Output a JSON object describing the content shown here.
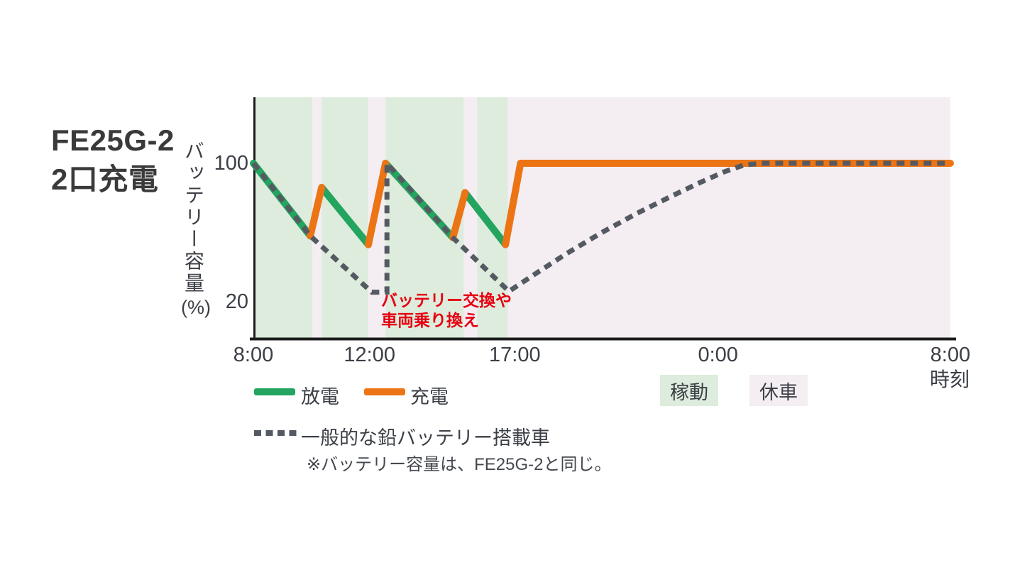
{
  "title": {
    "line1": "FE25G-2",
    "line2": "2口充電"
  },
  "colors": {
    "discharge": "#23a45f",
    "charge": "#ec7414",
    "lead": "#555a62",
    "band_active": "#ddecdc",
    "band_rest": "#f4eef3",
    "axis": "#1c1c1c",
    "text": "#3c4046",
    "annotation": "#e60012",
    "background": "#ffffff"
  },
  "chart_data": {
    "type": "line",
    "title": "FE25G-2 2口充電",
    "xlabel": "時刻",
    "ylabel": "バッテリー容量",
    "ylabel_unit": "(%)",
    "x_unit": "hours elapsed from 8:00",
    "x_range": [
      0,
      24
    ],
    "y_range": [
      0,
      115
    ],
    "grid": false,
    "x_ticks": [
      {
        "t": 0,
        "label": "8:00"
      },
      {
        "t": 4,
        "label": "12:00"
      },
      {
        "t": 9,
        "label": "17:00"
      },
      {
        "t": 16,
        "label": "0:00"
      },
      {
        "t": 24,
        "label": "8:00"
      }
    ],
    "y_ticks": [
      {
        "value": 100,
        "label": "100"
      },
      {
        "value": 20,
        "label": "20"
      }
    ],
    "bands": {
      "active": {
        "label": "稼動",
        "ranges": [
          [
            0,
            2.03
          ],
          [
            2.35,
            3.95
          ],
          [
            4.55,
            7.24
          ],
          [
            7.7,
            8.76
          ]
        ]
      },
      "rest": {
        "label": "休車",
        "ranges": [
          [
            2.03,
            2.35
          ],
          [
            3.95,
            4.55
          ],
          [
            7.24,
            7.7
          ],
          [
            8.76,
            24
          ]
        ]
      }
    },
    "series": [
      {
        "key": "discharge",
        "name": "放電",
        "style": "solid",
        "width": 10,
        "segments": [
          [
            [
              0,
              100
            ],
            [
              1.96,
              58
            ]
          ],
          [
            [
              2.35,
              86
            ],
            [
              3.96,
              53
            ]
          ],
          [
            [
              4.55,
              100
            ],
            [
              6.87,
              57
            ]
          ],
          [
            [
              7.29,
              83
            ],
            [
              8.68,
              53
            ]
          ]
        ]
      },
      {
        "key": "charge",
        "name": "充電",
        "style": "solid",
        "width": 10,
        "segments": [
          [
            [
              1.96,
              58
            ],
            [
              2.35,
              86
            ]
          ],
          [
            [
              3.96,
              53
            ],
            [
              4.55,
              100
            ]
          ],
          [
            [
              6.87,
              57
            ],
            [
              7.29,
              83
            ]
          ],
          [
            [
              8.68,
              53
            ],
            [
              9.2,
              100
            ],
            [
              24,
              100
            ]
          ]
        ]
      },
      {
        "key": "lead",
        "name": "一般的な鉛バッテリー搭載車",
        "style": "dashed",
        "width": 7,
        "points": [
          [
            0,
            100
          ],
          [
            1.96,
            58
          ],
          [
            4.08,
            25.5
          ],
          [
            4.6,
            25.5
          ],
          [
            4.6,
            100
          ],
          [
            6.87,
            57
          ],
          [
            8.8,
            26
          ],
          [
            9.7,
            36
          ],
          [
            10.8,
            48
          ],
          [
            12,
            60
          ],
          [
            13.2,
            71
          ],
          [
            14.4,
            81
          ],
          [
            15.4,
            89
          ],
          [
            16.2,
            95
          ],
          [
            16.9,
            99
          ],
          [
            17.5,
            100
          ],
          [
            24,
            100
          ]
        ]
      }
    ],
    "annotation": {
      "line1": "バッテリー交換や",
      "line2": "車両乗り換え"
    }
  },
  "legend": {
    "discharge_label": "放電",
    "charge_label": "充電",
    "active_label": "稼動",
    "rest_label": "休車",
    "lead_label": "一般的な鉛バッテリー搭載車",
    "note": "※バッテリー容量は、FE25G-2と同じ。"
  }
}
